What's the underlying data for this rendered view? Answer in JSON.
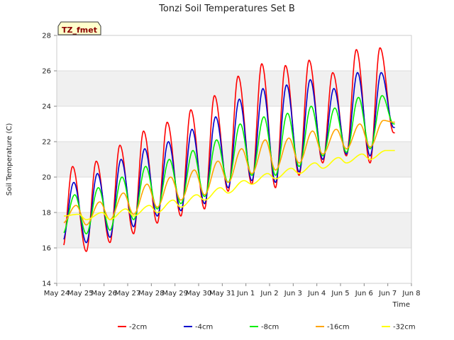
{
  "chart_data": {
    "type": "line",
    "title": "Tonzi Soil Temperatures Set B",
    "xlabel": "Time",
    "ylabel": "Soil Temperature (C)",
    "badge": "TZ_fmet",
    "ylim": [
      14,
      28
    ],
    "xlim": [
      0,
      15
    ],
    "yticks": [
      14,
      16,
      18,
      20,
      22,
      24,
      26,
      28
    ],
    "xtick_labels": [
      "May 24",
      "May 25",
      "May 26",
      "May 27",
      "May 28",
      "May 29",
      "May 30",
      "May 31",
      "Jun 1",
      "Jun 2",
      "Jun 3",
      "Jun 4",
      "Jun 5",
      "Jun 6",
      "Jun 7",
      "Jun 8"
    ],
    "x_start": 0.3,
    "x_end": 14.3,
    "grid": true,
    "legend_position": "bottom",
    "series": [
      {
        "name": "-2cm",
        "color": "#ff0000",
        "daily_min": [
          16.0,
          15.8,
          16.3,
          16.8,
          17.4,
          17.8,
          18.2,
          19.2,
          19.6,
          19.4,
          20.1,
          20.8,
          21.2,
          20.8,
          22.5
        ],
        "daily_max": [
          20.6,
          20.9,
          21.8,
          22.6,
          23.1,
          23.8,
          24.6,
          25.7,
          26.4,
          26.3,
          26.6,
          25.9,
          27.2,
          27.3
        ]
      },
      {
        "name": "-4cm",
        "color": "#0000cc",
        "daily_min": [
          16.4,
          16.3,
          16.6,
          17.2,
          17.8,
          18.1,
          18.5,
          19.4,
          19.8,
          19.7,
          20.3,
          21.0,
          21.3,
          21.2,
          22.8
        ],
        "daily_max": [
          19.7,
          20.2,
          21.0,
          21.6,
          22.0,
          22.7,
          23.4,
          24.4,
          25.0,
          25.2,
          25.5,
          25.0,
          25.9,
          25.9
        ]
      },
      {
        "name": "-8cm",
        "color": "#00ee00",
        "daily_min": [
          16.8,
          16.8,
          17.0,
          17.6,
          18.2,
          18.5,
          18.9,
          19.7,
          20.1,
          20.1,
          20.6,
          21.2,
          21.4,
          21.6,
          23.0
        ],
        "daily_max": [
          19.0,
          19.4,
          20.0,
          20.6,
          21.0,
          21.5,
          22.1,
          23.0,
          23.4,
          23.6,
          24.0,
          23.9,
          24.5,
          24.6
        ]
      },
      {
        "name": "-16cm",
        "color": "#ffa500",
        "daily_min": [
          17.4,
          17.3,
          17.6,
          17.9,
          18.3,
          18.7,
          19.0,
          19.7,
          20.2,
          20.4,
          20.8,
          21.3,
          21.6,
          21.7,
          23.1
        ],
        "daily_max": [
          18.4,
          18.6,
          19.1,
          19.6,
          20.0,
          20.4,
          20.9,
          21.6,
          22.1,
          22.2,
          22.6,
          22.7,
          23.0,
          23.2
        ]
      },
      {
        "name": "-32cm",
        "color": "#ffff00",
        "daily_min": [
          17.8,
          17.6,
          17.6,
          17.8,
          18.0,
          18.3,
          18.7,
          19.1,
          19.6,
          19.9,
          20.2,
          20.5,
          20.8,
          21.0,
          21.5
        ],
        "daily_max": [
          17.9,
          18.0,
          18.2,
          18.4,
          18.7,
          19.0,
          19.4,
          19.8,
          20.2,
          20.5,
          20.8,
          21.1,
          21.3,
          21.5
        ]
      }
    ]
  }
}
